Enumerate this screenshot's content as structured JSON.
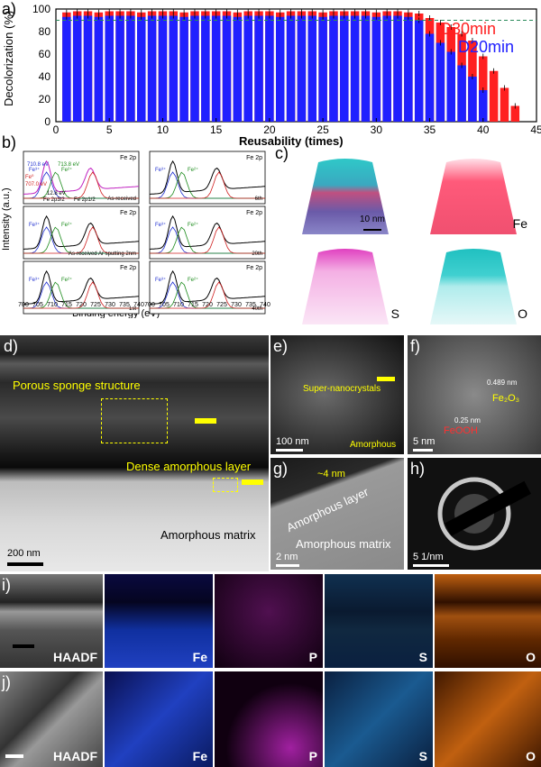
{
  "panel_a": {
    "label": "a)",
    "ylabel": "Decolorization (%)",
    "xlabel": "Reusability (times)",
    "legend_d30": "D30min",
    "legend_d20": "D20min",
    "xticks": [
      "0",
      "5",
      "10",
      "15",
      "20",
      "25",
      "30",
      "35",
      "40",
      "45"
    ],
    "yticks": [
      "0",
      "20",
      "40",
      "60",
      "80",
      "100"
    ]
  },
  "chart_data": {
    "type": "bar",
    "title": "",
    "xlabel": "Reusability (times)",
    "ylabel": "Decolorization (%)",
    "xlim": [
      0,
      45
    ],
    "ylim": [
      0,
      100
    ],
    "series": [
      {
        "name": "D30min",
        "color": "#ff2020",
        "x": [
          1,
          2,
          3,
          4,
          5,
          6,
          7,
          8,
          9,
          10,
          11,
          12,
          13,
          14,
          15,
          16,
          17,
          18,
          19,
          20,
          21,
          22,
          23,
          24,
          25,
          26,
          27,
          28,
          29,
          30,
          31,
          32,
          33,
          34,
          35,
          36,
          37,
          38,
          39,
          40,
          41,
          42,
          43
        ],
        "values": [
          97,
          98,
          98,
          97,
          98,
          98,
          98,
          97,
          98,
          98,
          98,
          97,
          98,
          98,
          98,
          98,
          97,
          98,
          98,
          98,
          97,
          98,
          98,
          98,
          97,
          98,
          98,
          98,
          98,
          97,
          98,
          98,
          97,
          96,
          92,
          88,
          84,
          78,
          72,
          58,
          45,
          30,
          14
        ]
      },
      {
        "name": "D20min",
        "color": "#2020ff",
        "x": [
          1,
          2,
          3,
          4,
          5,
          6,
          7,
          8,
          9,
          10,
          11,
          12,
          13,
          14,
          15,
          16,
          17,
          18,
          19,
          20,
          21,
          22,
          23,
          24,
          25,
          26,
          27,
          28,
          29,
          30,
          31,
          32,
          33,
          34,
          35,
          36,
          37,
          38,
          39,
          40
        ],
        "values": [
          93,
          94,
          94,
          93,
          94,
          94,
          94,
          93,
          94,
          94,
          94,
          93,
          94,
          94,
          94,
          94,
          93,
          94,
          94,
          94,
          93,
          94,
          94,
          94,
          93,
          94,
          94,
          94,
          94,
          93,
          94,
          94,
          93,
          90,
          78,
          70,
          62,
          50,
          40,
          28
        ]
      }
    ]
  },
  "panel_b": {
    "label": "b)",
    "ylabel": "Intensity (a.u.)",
    "xlabel": "Binding energy (eV)",
    "xticks": [
      "700",
      "705",
      "710",
      "715",
      "720",
      "725",
      "730",
      "735",
      "740"
    ],
    "spectra": [
      {
        "tag": "Fe 2p",
        "note": "As-received"
      },
      {
        "tag": "Fe 2p",
        "note": "As-received Ar sputting 2nm"
      },
      {
        "tag": "Fe 2p",
        "note": "1st"
      },
      {
        "tag": "Fe 2p",
        "note": "6th"
      },
      {
        "tag": "Fe 2p",
        "note": "20th"
      },
      {
        "tag": "Fe 2p",
        "note": "40th"
      }
    ],
    "fe2_label": "Fe²⁺",
    "fe3_label": "Fe³⁺",
    "fe0_label": "Fe⁰",
    "e1": "710.8 eV",
    "e2": "713.8 eV",
    "e3": "707.0 eV",
    "split": "12.8 eV",
    "fe2p32": "Fe 2p3/2",
    "fe2p12": "Fe 2p1/2"
  },
  "panel_c": {
    "label": "c)",
    "scale": "10 nm",
    "maps": [
      "Fe",
      "S",
      "O"
    ]
  },
  "panel_d": {
    "label": "d)",
    "porous": "Porous sponge structure",
    "dense": "Dense amorphous layer",
    "matrix": "Amorphous matrix",
    "scale": "200 nm"
  },
  "panel_e": {
    "label": "e)",
    "super": "Super-nanocrystals",
    "amorph": "Amorphous",
    "scale": "100 nm"
  },
  "panel_f": {
    "label": "f)",
    "fe2o3": "Fe₂O₃",
    "d1": "0.489 nm",
    "d2": "0.25 nm",
    "feooh": "FeOOH",
    "scale": "5 nm"
  },
  "panel_g": {
    "label": "g)",
    "thick": "~4 nm",
    "layer": "Amorphous layer",
    "matrix": "Amorphous matrix",
    "scale": "2 nm"
  },
  "panel_h": {
    "label": "h)",
    "scale": "5 1/nm"
  },
  "panel_i": {
    "label": "i)",
    "maps": [
      "HAADF",
      "Fe",
      "P",
      "S",
      "O"
    ]
  },
  "panel_j": {
    "label": "j)",
    "maps": [
      "HAADF",
      "Fe",
      "P",
      "S",
      "O"
    ]
  }
}
